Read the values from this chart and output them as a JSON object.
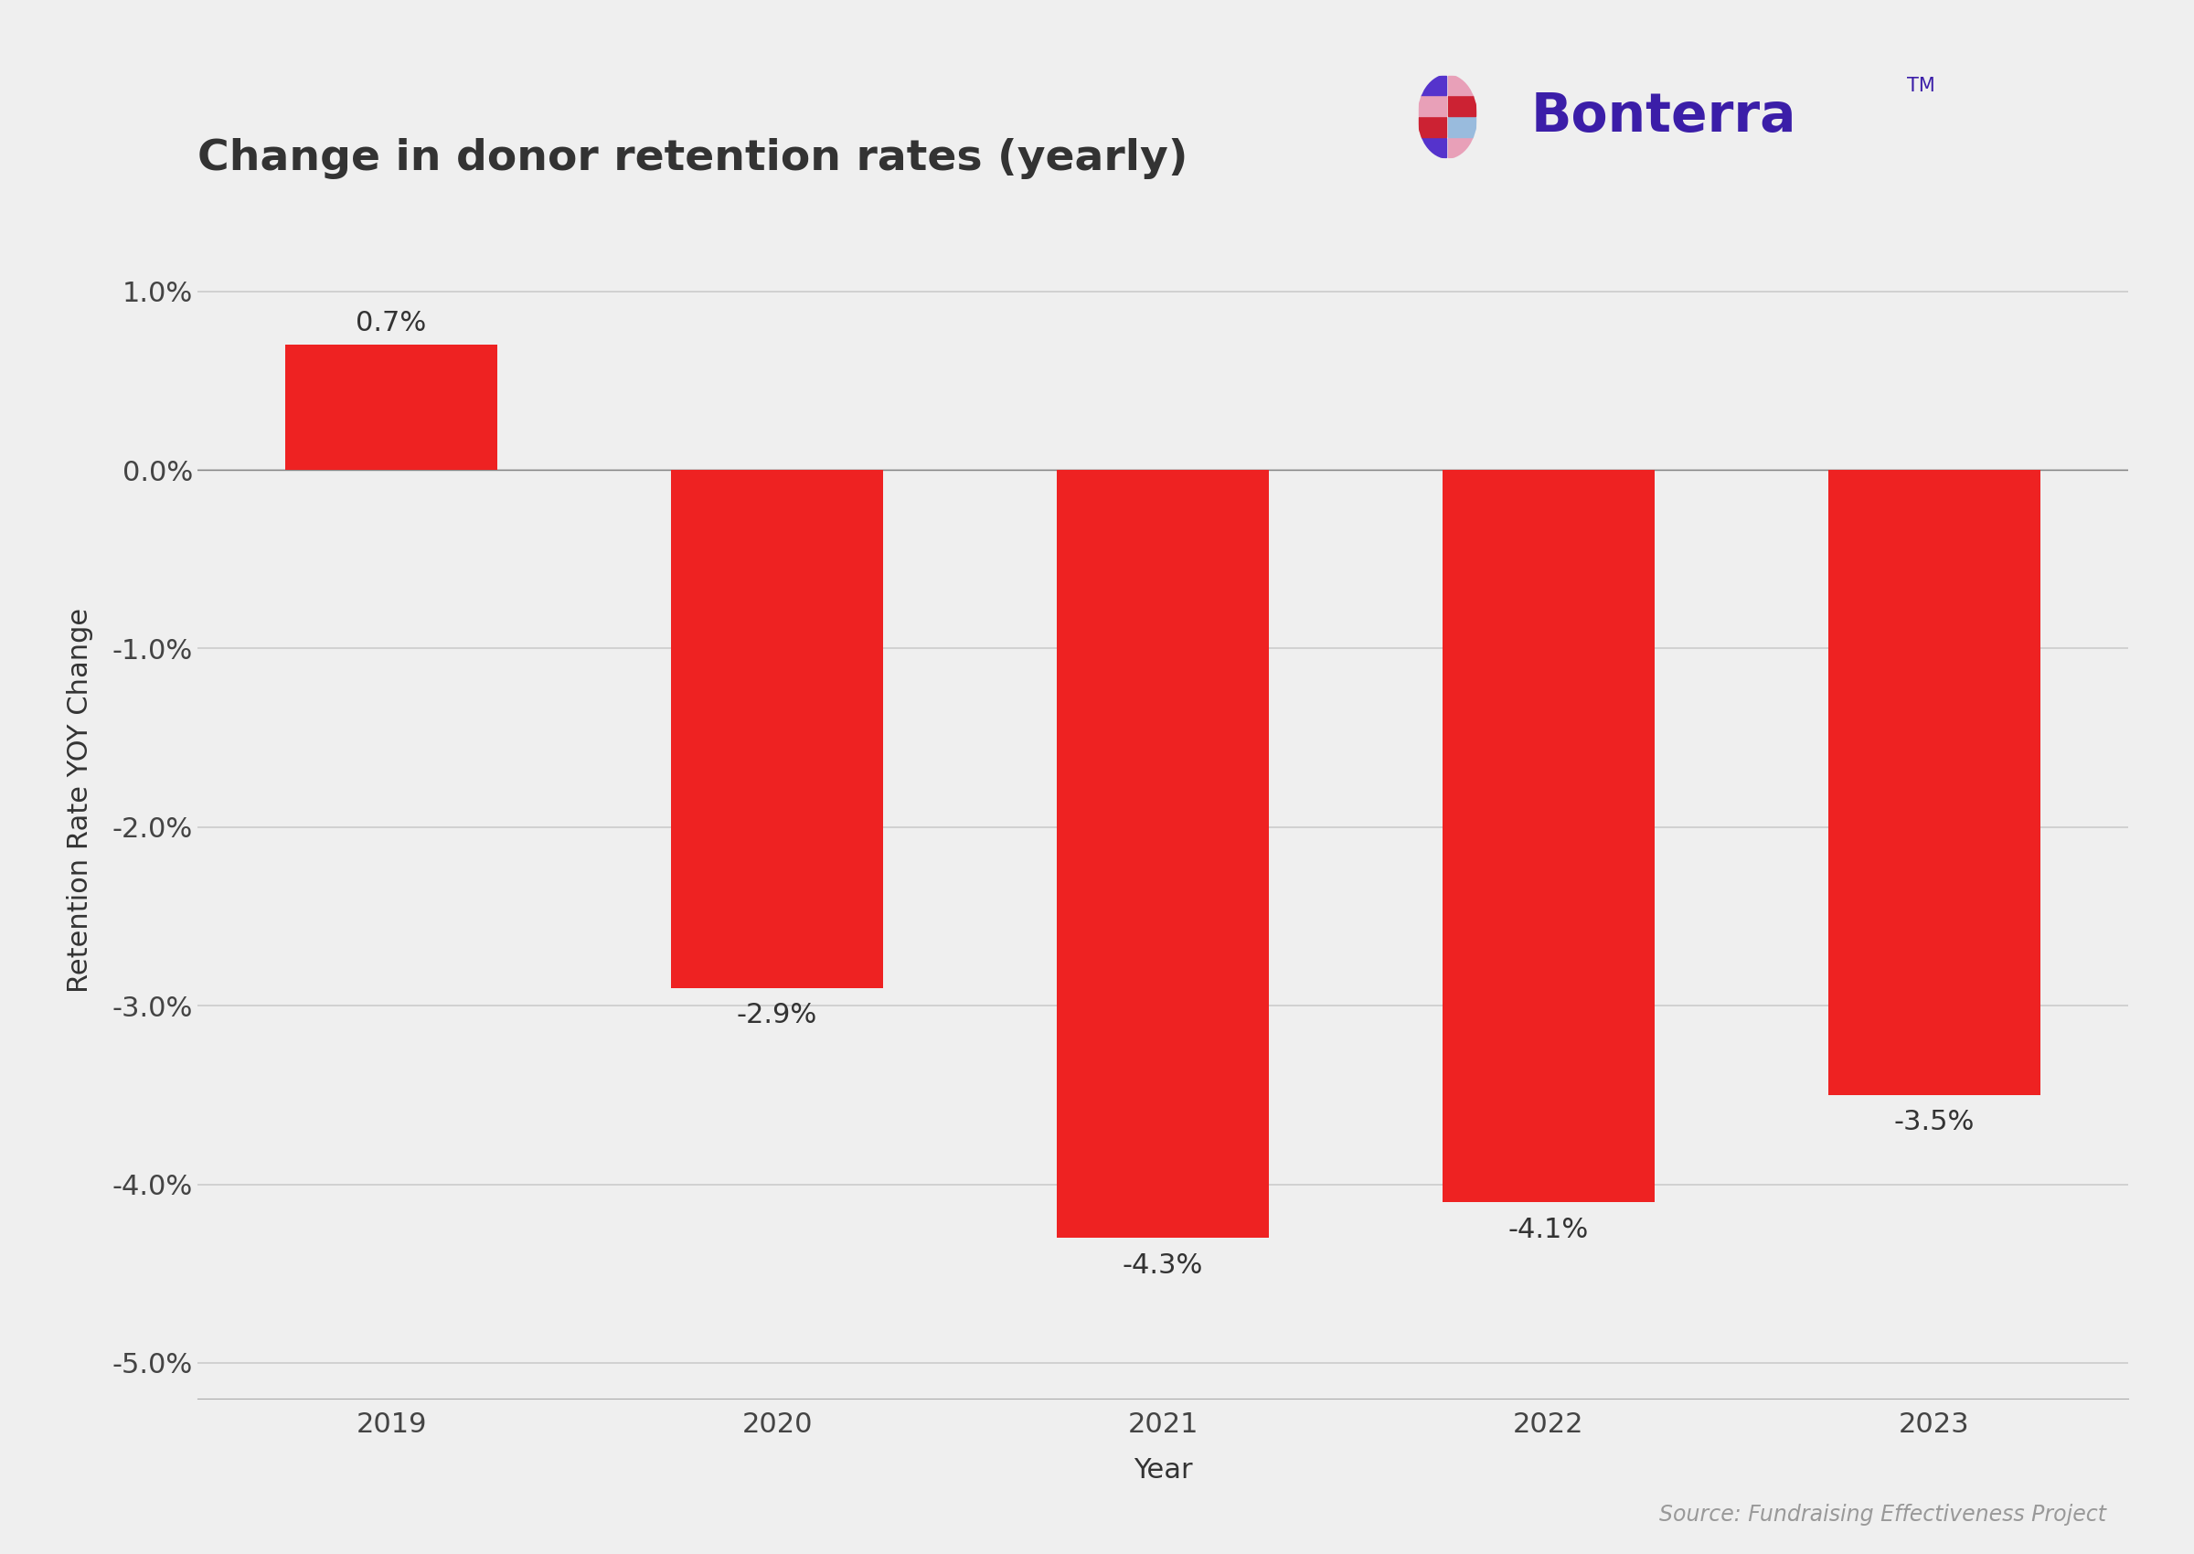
{
  "title": "Change in donor retention rates (yearly)",
  "xlabel": "Year",
  "ylabel": "Retention Rate YOY Change",
  "categories": [
    "2019",
    "2020",
    "2021",
    "2022",
    "2023"
  ],
  "values": [
    0.7,
    -2.9,
    -4.3,
    -4.1,
    -3.5
  ],
  "bar_color": "#EE2222",
  "ylim": [
    -5.2,
    1.5
  ],
  "yticks": [
    1.0,
    0.0,
    -1.0,
    -2.0,
    -3.0,
    -4.0,
    -5.0
  ],
  "ytick_labels": [
    "1.0%",
    "0.0%",
    "-1.0%",
    "-2.0%",
    "-3.0%",
    "-4.0%",
    "-5.0%"
  ],
  "background_color": "#EFEFEF",
  "grid_color": "#CCCCCC",
  "source_text": "Source: Fundraising Effectiveness Project",
  "title_fontsize": 34,
  "axis_label_fontsize": 22,
  "tick_fontsize": 22,
  "annotation_fontsize": 22,
  "source_fontsize": 17,
  "bar_width": 0.55,
  "bar_annotations": [
    "0.7%",
    "-2.9%",
    "-4.3%",
    "-4.1%",
    "-3.5%"
  ],
  "bonterra_color": "#3B1EA8",
  "logo_icon_colors": {
    "top_left": "#5533CC",
    "top_right": "#E8A0B8",
    "mid_left_top": "#CC2233",
    "mid_left_bot": "#E8A0B8",
    "mid_right_top": "#99BBDD",
    "mid_right_bot": "#CC2233",
    "bot_left": "#5533CC",
    "bot_right": "#E8A0B8"
  }
}
